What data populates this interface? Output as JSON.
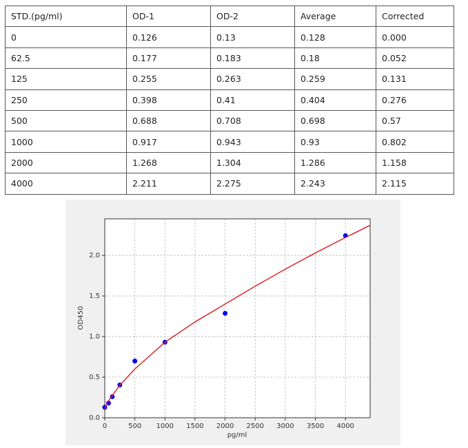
{
  "table": {
    "header": [
      "STD.(pg/ml)",
      "OD-1",
      "OD-2",
      "Average",
      "Corrected"
    ],
    "rows": [
      [
        "0",
        "0.126",
        "0.13",
        "0.128",
        "0.000"
      ],
      [
        "62.5",
        "0.177",
        "0.183",
        "0.18",
        "0.052"
      ],
      [
        "125",
        "0.255",
        "0.263",
        "0.259",
        "0.131"
      ],
      [
        "250",
        "0.398",
        "0.41",
        "0.404",
        "0.276"
      ],
      [
        "500",
        "0.688",
        "0.708",
        "0.698",
        "0.57"
      ],
      [
        "1000",
        "0.917",
        "0.943",
        "0.93",
        "0.802"
      ],
      [
        "2000",
        "1.268",
        "1.304",
        "1.286",
        "1.158"
      ],
      [
        "4000",
        "2.211",
        "2.275",
        "2.243",
        "2.115"
      ]
    ]
  },
  "chart_data": {
    "type": "scatter",
    "xlabel": "pg/ml",
    "ylabel": "OD450",
    "grid": true,
    "xlim": [
      0,
      4410
    ],
    "ylim": [
      0,
      2.45
    ],
    "xticks": [
      0,
      500,
      1000,
      1500,
      2000,
      2500,
      3000,
      3500,
      4000
    ],
    "yticks": [
      {
        "value": 0,
        "label": "0.0"
      },
      0.5,
      {
        "value": 1,
        "label": "1.0"
      },
      1.5,
      {
        "value": 2,
        "label": "2.0"
      }
    ],
    "series": [
      {
        "type": "scatter",
        "color": "#0000ff",
        "x": [
          0,
          62.5,
          125,
          250,
          500,
          1000,
          2000,
          4000
        ],
        "values": [
          0.128,
          0.18,
          0.259,
          0.404,
          0.698,
          0.93,
          1.286,
          2.243
        ]
      },
      {
        "type": "line",
        "color": "#d62728",
        "x": [
          0,
          50,
          100,
          250,
          500,
          1000,
          1500,
          2000,
          2500,
          3000,
          3500,
          4000,
          4410
        ],
        "values": [
          0.11,
          0.19,
          0.25,
          0.4,
          0.6,
          0.93,
          1.18,
          1.4,
          1.62,
          1.83,
          2.03,
          2.22,
          2.37
        ]
      }
    ]
  }
}
